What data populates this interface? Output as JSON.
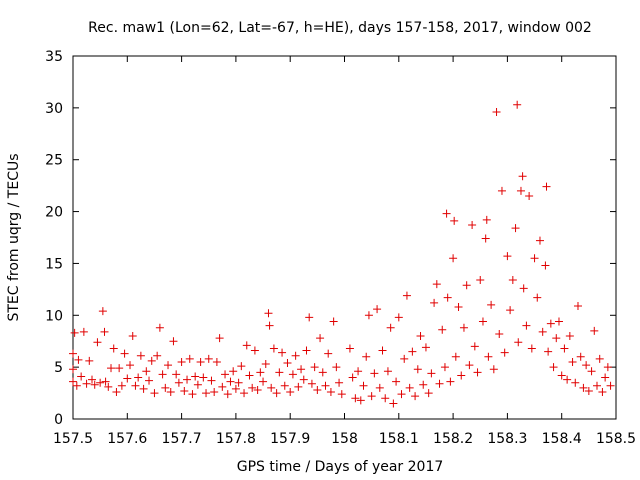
{
  "chart_data": {
    "type": "scatter",
    "title": "Rec. maw1 (Lon=62, Lat=-67, h=HE), days 157-158, 2017, window 002",
    "xlabel": "GPS time / Days of year 2017",
    "ylabel": "STEC from uqrg / TECUs",
    "xlim": [
      157.5,
      158.5
    ],
    "ylim": [
      0,
      35
    ],
    "xticks": [
      157.5,
      157.6,
      157.7,
      157.8,
      157.9,
      158.0,
      158.1,
      158.2,
      158.3,
      158.4,
      158.5
    ],
    "xtick_labels": [
      "157.5",
      "157.6",
      "157.7",
      "157.8",
      "157.9",
      "158",
      "158.1",
      "158.2",
      "158.3",
      "158.4",
      "158.5"
    ],
    "yticks": [
      0,
      5,
      10,
      15,
      20,
      25,
      30,
      35
    ],
    "ytick_labels": [
      "0",
      "5",
      "10",
      "15",
      "20",
      "25",
      "30",
      "35"
    ],
    "grid": false,
    "marker": "plus",
    "color": "#e00000",
    "series": [
      {
        "name": "STEC",
        "points": [
          [
            157.5,
            3.6
          ],
          [
            157.5,
            4.8
          ],
          [
            157.5,
            6.3
          ],
          [
            157.503,
            8.3
          ],
          [
            157.507,
            3.2
          ],
          [
            157.51,
            5.7
          ],
          [
            157.515,
            4.1
          ],
          [
            157.52,
            8.4
          ],
          [
            157.525,
            3.4
          ],
          [
            157.53,
            5.6
          ],
          [
            157.535,
            3.8
          ],
          [
            157.54,
            3.3
          ],
          [
            157.545,
            7.4
          ],
          [
            157.55,
            3.5
          ],
          [
            157.555,
            10.4
          ],
          [
            157.558,
            8.4
          ],
          [
            157.56,
            3.6
          ],
          [
            157.565,
            3.1
          ],
          [
            157.57,
            4.9
          ],
          [
            157.575,
            6.8
          ],
          [
            157.58,
            2.6
          ],
          [
            157.585,
            4.9
          ],
          [
            157.59,
            3.2
          ],
          [
            157.595,
            6.3
          ],
          [
            157.6,
            3.9
          ],
          [
            157.605,
            5.2
          ],
          [
            157.61,
            8.0
          ],
          [
            157.615,
            3.2
          ],
          [
            157.62,
            4.0
          ],
          [
            157.625,
            6.1
          ],
          [
            157.63,
            2.9
          ],
          [
            157.635,
            4.6
          ],
          [
            157.64,
            3.7
          ],
          [
            157.645,
            5.6
          ],
          [
            157.65,
            2.5
          ],
          [
            157.655,
            6.1
          ],
          [
            157.66,
            8.8
          ],
          [
            157.665,
            4.3
          ],
          [
            157.67,
            3.0
          ],
          [
            157.675,
            5.2
          ],
          [
            157.68,
            2.6
          ],
          [
            157.685,
            7.5
          ],
          [
            157.69,
            4.3
          ],
          [
            157.695,
            3.5
          ],
          [
            157.7,
            5.5
          ],
          [
            157.705,
            2.7
          ],
          [
            157.71,
            3.8
          ],
          [
            157.715,
            5.8
          ],
          [
            157.72,
            2.4
          ],
          [
            157.725,
            4.1
          ],
          [
            157.73,
            3.3
          ],
          [
            157.735,
            5.5
          ],
          [
            157.74,
            4.0
          ],
          [
            157.745,
            2.5
          ],
          [
            157.75,
            5.8
          ],
          [
            157.755,
            3.7
          ],
          [
            157.76,
            2.6
          ],
          [
            157.765,
            5.5
          ],
          [
            157.77,
            7.8
          ],
          [
            157.775,
            3.1
          ],
          [
            157.78,
            4.3
          ],
          [
            157.785,
            2.4
          ],
          [
            157.79,
            3.6
          ],
          [
            157.795,
            4.6
          ],
          [
            157.8,
            2.9
          ],
          [
            157.805,
            3.5
          ],
          [
            157.81,
            5.1
          ],
          [
            157.815,
            2.5
          ],
          [
            157.82,
            7.1
          ],
          [
            157.825,
            4.2
          ],
          [
            157.83,
            3.0
          ],
          [
            157.835,
            6.6
          ],
          [
            157.84,
            2.8
          ],
          [
            157.845,
            4.5
          ],
          [
            157.85,
            3.6
          ],
          [
            157.855,
            5.3
          ],
          [
            157.86,
            10.2
          ],
          [
            157.862,
            9.0
          ],
          [
            157.865,
            3.0
          ],
          [
            157.87,
            6.8
          ],
          [
            157.875,
            2.5
          ],
          [
            157.88,
            4.5
          ],
          [
            157.885,
            6.4
          ],
          [
            157.89,
            3.2
          ],
          [
            157.895,
            5.4
          ],
          [
            157.9,
            2.6
          ],
          [
            157.905,
            4.3
          ],
          [
            157.91,
            6.1
          ],
          [
            157.915,
            3.1
          ],
          [
            157.92,
            4.8
          ],
          [
            157.925,
            3.8
          ],
          [
            157.93,
            6.6
          ],
          [
            157.935,
            9.8
          ],
          [
            157.94,
            3.4
          ],
          [
            157.945,
            5.0
          ],
          [
            157.95,
            2.8
          ],
          [
            157.955,
            7.8
          ],
          [
            157.96,
            4.5
          ],
          [
            157.965,
            3.2
          ],
          [
            157.97,
            6.3
          ],
          [
            157.975,
            2.6
          ],
          [
            157.98,
            9.4
          ],
          [
            157.985,
            5.0
          ],
          [
            157.99,
            3.5
          ],
          [
            157.995,
            2.4
          ],
          [
            158.01,
            6.8
          ],
          [
            158.015,
            4.0
          ],
          [
            158.02,
            2.0
          ],
          [
            158.025,
            4.6
          ],
          [
            158.03,
            1.8
          ],
          [
            158.035,
            3.2
          ],
          [
            158.04,
            6.0
          ],
          [
            158.045,
            10.0
          ],
          [
            158.05,
            2.2
          ],
          [
            158.055,
            4.4
          ],
          [
            158.06,
            10.6
          ],
          [
            158.065,
            3.0
          ],
          [
            158.07,
            6.6
          ],
          [
            158.075,
            2.0
          ],
          [
            158.08,
            4.6
          ],
          [
            158.085,
            8.8
          ],
          [
            158.09,
            1.5
          ],
          [
            158.095,
            3.6
          ],
          [
            158.1,
            9.8
          ],
          [
            158.105,
            2.4
          ],
          [
            158.11,
            5.8
          ],
          [
            158.115,
            11.9
          ],
          [
            158.12,
            3.0
          ],
          [
            158.125,
            6.5
          ],
          [
            158.13,
            2.2
          ],
          [
            158.135,
            4.8
          ],
          [
            158.14,
            8.0
          ],
          [
            158.145,
            3.3
          ],
          [
            158.15,
            6.9
          ],
          [
            158.155,
            2.5
          ],
          [
            158.16,
            4.4
          ],
          [
            158.165,
            11.2
          ],
          [
            158.17,
            13.0
          ],
          [
            158.175,
            3.4
          ],
          [
            158.18,
            8.6
          ],
          [
            158.185,
            5.0
          ],
          [
            158.188,
            19.8
          ],
          [
            158.19,
            11.7
          ],
          [
            158.195,
            3.6
          ],
          [
            158.2,
            15.5
          ],
          [
            158.202,
            19.1
          ],
          [
            158.205,
            6.0
          ],
          [
            158.21,
            10.8
          ],
          [
            158.215,
            4.2
          ],
          [
            158.22,
            8.8
          ],
          [
            158.225,
            12.9
          ],
          [
            158.23,
            5.2
          ],
          [
            158.235,
            18.7
          ],
          [
            158.24,
            7.0
          ],
          [
            158.245,
            4.5
          ],
          [
            158.25,
            13.4
          ],
          [
            158.255,
            9.4
          ],
          [
            158.26,
            17.4
          ],
          [
            158.262,
            19.2
          ],
          [
            158.265,
            6.0
          ],
          [
            158.27,
            11.0
          ],
          [
            158.275,
            4.8
          ],
          [
            158.28,
            29.6
          ],
          [
            158.285,
            8.2
          ],
          [
            158.29,
            22.0
          ],
          [
            158.295,
            6.4
          ],
          [
            158.3,
            15.7
          ],
          [
            158.305,
            10.5
          ],
          [
            158.31,
            13.4
          ],
          [
            158.315,
            18.4
          ],
          [
            158.318,
            30.3
          ],
          [
            158.32,
            7.4
          ],
          [
            158.325,
            22.0
          ],
          [
            158.328,
            23.4
          ],
          [
            158.33,
            12.6
          ],
          [
            158.335,
            9.0
          ],
          [
            158.34,
            21.5
          ],
          [
            158.345,
            6.8
          ],
          [
            158.35,
            15.5
          ],
          [
            158.355,
            11.7
          ],
          [
            158.36,
            17.2
          ],
          [
            158.365,
            8.4
          ],
          [
            158.37,
            14.8
          ],
          [
            158.372,
            22.4
          ],
          [
            158.375,
            6.5
          ],
          [
            158.38,
            9.2
          ],
          [
            158.385,
            5.0
          ],
          [
            158.39,
            7.8
          ],
          [
            158.395,
            9.4
          ],
          [
            158.4,
            4.2
          ],
          [
            158.405,
            6.8
          ],
          [
            158.41,
            3.8
          ],
          [
            158.415,
            8.0
          ],
          [
            158.42,
            5.5
          ],
          [
            158.425,
            3.5
          ],
          [
            158.43,
            10.9
          ],
          [
            158.435,
            6.0
          ],
          [
            158.44,
            3.0
          ],
          [
            158.445,
            5.2
          ],
          [
            158.45,
            2.7
          ],
          [
            158.455,
            4.6
          ],
          [
            158.46,
            8.5
          ],
          [
            158.465,
            3.2
          ],
          [
            158.47,
            5.8
          ],
          [
            158.475,
            2.6
          ],
          [
            158.48,
            4.0
          ],
          [
            158.485,
            5.0
          ],
          [
            158.49,
            3.2
          ]
        ]
      }
    ]
  }
}
